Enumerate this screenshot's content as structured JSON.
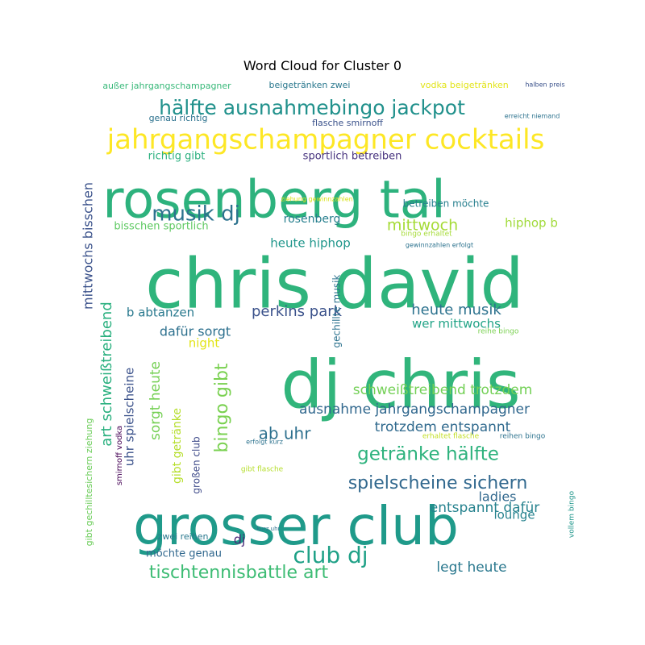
{
  "chart_data": {
    "type": "wordcloud",
    "title": "Word Cloud for Cluster 0",
    "words": [
      {
        "text": "chris david",
        "weight": 100,
        "color": "#2fb47c"
      },
      {
        "text": "dj chris",
        "weight": 90,
        "color": "#31b57b"
      },
      {
        "text": "grosser club",
        "weight": 75,
        "color": "#1f9a8a"
      },
      {
        "text": "rosenberg tal",
        "weight": 72,
        "color": "#2db27d"
      },
      {
        "text": "jahrgangschampagner cocktails",
        "weight": 38,
        "color": "#fde725"
      },
      {
        "text": "hälfte ausnahmebingo jackpot",
        "weight": 30,
        "color": "#21918c"
      },
      {
        "text": "club dj",
        "weight": 30,
        "color": "#1fa187"
      },
      {
        "text": "getränke hälfte",
        "weight": 26,
        "color": "#2db27d"
      },
      {
        "text": "musik dj",
        "weight": 26,
        "color": "#2c728e"
      },
      {
        "text": "tischtennisbattle art",
        "weight": 24,
        "color": "#3dbc74"
      },
      {
        "text": "spielscheine sichern",
        "weight": 24,
        "color": "#31688e"
      },
      {
        "text": "schweißtreibend trotzdem",
        "weight": 20,
        "color": "#73d056"
      },
      {
        "text": "mittwoch",
        "weight": 20,
        "color": "#a5db36"
      },
      {
        "text": "perkins park",
        "weight": 20,
        "color": "#3b528b"
      },
      {
        "text": "heute musik",
        "weight": 18,
        "color": "#2c728e"
      },
      {
        "text": "ausnahme jahrgangschampagner",
        "weight": 18,
        "color": "#31688e"
      },
      {
        "text": "trotzdem entspannt",
        "weight": 18,
        "color": "#306a8e"
      },
      {
        "text": "ab uhr",
        "weight": 20,
        "color": "#2d708e"
      },
      {
        "text": "entspannt dafür",
        "weight": 18,
        "color": "#26828e"
      },
      {
        "text": "legt heute",
        "weight": 18,
        "color": "#2a788e"
      },
      {
        "text": "dafür sorgt",
        "weight": 16,
        "color": "#2d708e"
      },
      {
        "text": "b abtanzen",
        "weight": 15,
        "color": "#29798e"
      },
      {
        "text": "wer mittwochs",
        "weight": 15,
        "color": "#20a386"
      },
      {
        "text": "heute hiphop",
        "weight": 15,
        "color": "#1f968b"
      },
      {
        "text": "rosenberg",
        "weight": 14,
        "color": "#277f8e"
      },
      {
        "text": "hiphop b",
        "weight": 14,
        "color": "#a0da39"
      },
      {
        "text": "sportlich betreiben",
        "weight": 13,
        "color": "#46327e"
      },
      {
        "text": "richtig gibt",
        "weight": 13,
        "color": "#2ab07f"
      },
      {
        "text": "bisschen sportlich",
        "weight": 13,
        "color": "#5ec962"
      },
      {
        "text": "betreiben möchte",
        "weight": 12,
        "color": "#277f8e"
      },
      {
        "text": "night",
        "weight": 14,
        "color": "#e2e418"
      },
      {
        "text": "ladies",
        "weight": 16,
        "color": "#31688e"
      },
      {
        "text": "lounge",
        "weight": 15,
        "color": "#26828e"
      },
      {
        "text": "dj",
        "weight": 16,
        "color": "#482878"
      },
      {
        "text": "möchte genau",
        "weight": 13,
        "color": "#31688e"
      },
      {
        "text": "zwei reihen",
        "weight": 11,
        "color": "#2a788e"
      },
      {
        "text": "außer jahrgangschampagner",
        "weight": 11,
        "color": "#37b878"
      },
      {
        "text": "beigetränken zwei",
        "weight": 11,
        "color": "#2a788e"
      },
      {
        "text": "vodka beigetränken",
        "weight": 11,
        "color": "#e2e418"
      },
      {
        "text": "genau richtig",
        "weight": 11,
        "color": "#2c728e"
      },
      {
        "text": "flasche smirnoff",
        "weight": 11,
        "color": "#3b528b"
      },
      {
        "text": "erreicht niemand",
        "weight": 8,
        "color": "#2c728e"
      },
      {
        "text": "halben preis",
        "weight": 8,
        "color": "#3b528b"
      },
      {
        "text": "bingo gibt",
        "weight": 22,
        "color": "#7ad151"
      },
      {
        "text": "art schweißtreibend",
        "weight": 18,
        "color": "#2ab07f"
      },
      {
        "text": "sorgt heute",
        "weight": 17,
        "color": "#75d054"
      },
      {
        "text": "uhr spielscheine",
        "weight": 15,
        "color": "#3b528b"
      },
      {
        "text": "gibt getränke",
        "weight": 14,
        "color": "#b5de2b"
      },
      {
        "text": "großen club",
        "weight": 12,
        "color": "#3e4a89"
      },
      {
        "text": "mittwochs bisschen",
        "weight": 16,
        "color": "#3b528b"
      },
      {
        "text": "gechillte musik",
        "weight": 12,
        "color": "#2c728e"
      },
      {
        "text": "gibt gechilltesichern ziehung",
        "weight": 11,
        "color": "#6ccd5a"
      },
      {
        "text": "smirnoff vodka",
        "weight": 10,
        "color": "#440154"
      },
      {
        "text": "reihe bingo",
        "weight": 9,
        "color": "#7ad151"
      },
      {
        "text": "bingo erhaltet",
        "weight": 9,
        "color": "#a5db36"
      },
      {
        "text": "gewinnzahlen erfolgt",
        "weight": 8,
        "color": "#2c728e"
      },
      {
        "text": "ziehung gewinnzahlen",
        "weight": 8,
        "color": "#d8e219"
      },
      {
        "text": "erhaltet flasche",
        "weight": 9,
        "color": "#c2df23"
      },
      {
        "text": "reihen bingo",
        "weight": 9,
        "color": "#2c728e"
      },
      {
        "text": "vollem bingo",
        "weight": 9,
        "color": "#1f968b"
      },
      {
        "text": "gibt flasche",
        "weight": 9,
        "color": "#b5de2b"
      },
      {
        "text": "erfolgt kurz",
        "weight": 8,
        "color": "#2c728e"
      },
      {
        "text": "kurz uhr",
        "weight": 7,
        "color": "#2c728e"
      }
    ]
  }
}
